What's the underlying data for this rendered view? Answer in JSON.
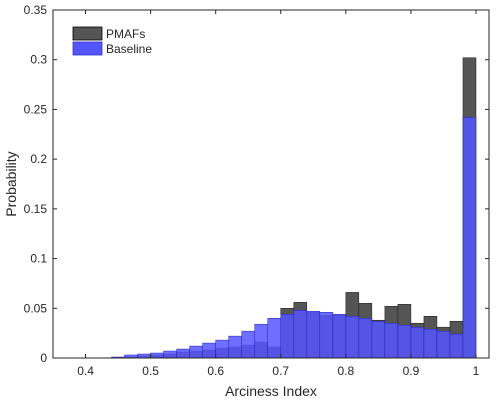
{
  "chart_data": {
    "type": "bar",
    "xlabel": "Arciness Index",
    "ylabel": "Probability",
    "xlim": [
      0.35,
      1.02
    ],
    "ylim": [
      0,
      0.35
    ],
    "xticks": [
      0.4,
      0.5,
      0.6,
      0.7,
      0.8,
      0.9,
      1
    ],
    "xtick_labels": [
      "0.4",
      "0.5",
      "0.6",
      "0.7",
      "0.8",
      "0.9",
      "1"
    ],
    "yticks": [
      0,
      0.05,
      0.1,
      0.15,
      0.2,
      0.25,
      0.3,
      0.35
    ],
    "ytick_labels": [
      "0",
      "0.05",
      "0.1",
      "0.15",
      "0.2",
      "0.25",
      "0.3",
      "0.35"
    ],
    "bin_width": 0.02,
    "bin_left_edges": [
      0.44,
      0.46,
      0.48,
      0.5,
      0.52,
      0.54,
      0.56,
      0.58,
      0.6,
      0.62,
      0.64,
      0.66,
      0.68,
      0.7,
      0.72,
      0.74,
      0.76,
      0.78,
      0.8,
      0.82,
      0.84,
      0.86,
      0.88,
      0.9,
      0.92,
      0.94,
      0.96,
      0.98
    ],
    "legend_position": "top-left",
    "grid": false,
    "series": [
      {
        "name": "PMAFs",
        "color": "#555555",
        "values": [
          0.0005,
          0.001,
          0.002,
          0.003,
          0.004,
          0.006,
          0.007,
          0.008,
          0.01,
          0.011,
          0.013,
          0.016,
          0.011,
          0.05,
          0.056,
          0.046,
          0.043,
          0.043,
          0.066,
          0.055,
          0.038,
          0.052,
          0.054,
          0.035,
          0.042,
          0.031,
          0.037,
          0.302
        ]
      },
      {
        "name": "Baseline",
        "color": "#5555ff",
        "values": [
          0.001,
          0.003,
          0.004,
          0.005,
          0.007,
          0.009,
          0.012,
          0.015,
          0.018,
          0.022,
          0.027,
          0.034,
          0.04,
          0.044,
          0.048,
          0.047,
          0.046,
          0.044,
          0.042,
          0.04,
          0.037,
          0.035,
          0.033,
          0.031,
          0.029,
          0.027,
          0.024,
          0.242
        ]
      }
    ]
  }
}
